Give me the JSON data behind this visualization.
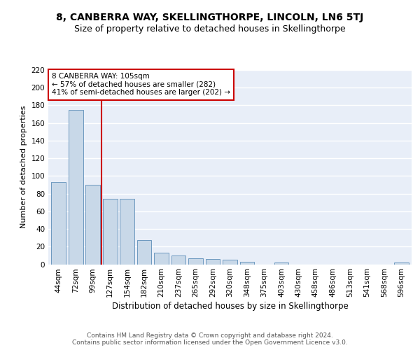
{
  "title": "8, CANBERRA WAY, SKELLINGTHORPE, LINCOLN, LN6 5TJ",
  "subtitle": "Size of property relative to detached houses in Skellingthorpe",
  "xlabel": "Distribution of detached houses by size in Skellingthorpe",
  "ylabel": "Number of detached properties",
  "categories": [
    "44sqm",
    "72sqm",
    "99sqm",
    "127sqm",
    "154sqm",
    "182sqm",
    "210sqm",
    "237sqm",
    "265sqm",
    "292sqm",
    "320sqm",
    "348sqm",
    "375sqm",
    "403sqm",
    "430sqm",
    "458sqm",
    "486sqm",
    "513sqm",
    "541sqm",
    "568sqm",
    "596sqm"
  ],
  "values": [
    93,
    175,
    90,
    74,
    74,
    27,
    13,
    10,
    7,
    6,
    5,
    3,
    0,
    2,
    0,
    0,
    0,
    0,
    0,
    0,
    2
  ],
  "bar_color": "#c8d8e8",
  "bar_edge_color": "#5b8db8",
  "vline_color": "#cc0000",
  "annotation_text": "8 CANBERRA WAY: 105sqm\n← 57% of detached houses are smaller (282)\n41% of semi-detached houses are larger (202) →",
  "annotation_box_color": "white",
  "annotation_box_edge": "#cc0000",
  "ylim": [
    0,
    220
  ],
  "yticks": [
    0,
    20,
    40,
    60,
    80,
    100,
    120,
    140,
    160,
    180,
    200,
    220
  ],
  "background_color": "#e8eef8",
  "grid_color": "white",
  "footer": "Contains HM Land Registry data © Crown copyright and database right 2024.\nContains public sector information licensed under the Open Government Licence v3.0.",
  "title_fontsize": 10,
  "subtitle_fontsize": 9,
  "xlabel_fontsize": 8.5,
  "ylabel_fontsize": 8,
  "tick_fontsize": 7.5,
  "annotation_fontsize": 7.5,
  "footer_fontsize": 6.5
}
